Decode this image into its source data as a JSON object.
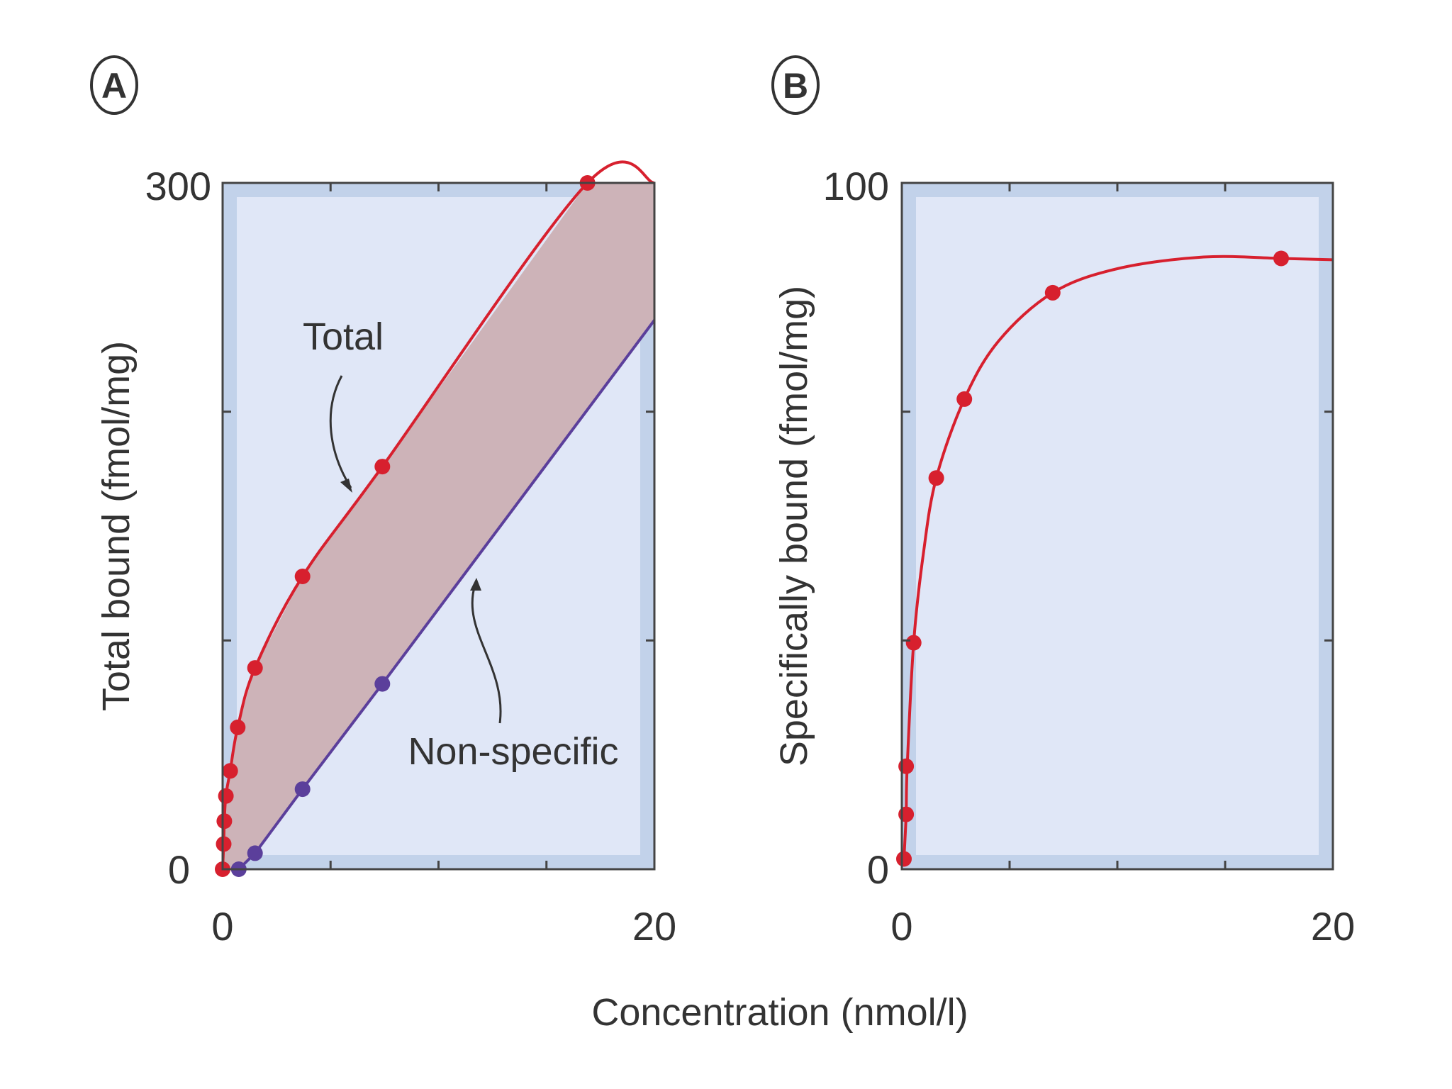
{
  "colors": {
    "plot_frame": "#c2d2ea",
    "plot_inner": "#e0e7f7",
    "total": "#d7202e",
    "nonspecific": "#5b3f9b",
    "band": "#cdb3b8",
    "axis": "#333333"
  },
  "shared": {
    "xlabel": "Concentration (nmol/l)"
  },
  "chart_data": [
    {
      "panel": "A",
      "type": "line",
      "ylabel": "Total bound (fmol/mg)",
      "xlim": [
        0,
        20
      ],
      "ylim": [
        0,
        300
      ],
      "x_ticks": [
        0,
        20
      ],
      "y_ticks": [
        0,
        300
      ],
      "grid": false,
      "shaded_between": [
        "Total",
        "Non-specific"
      ],
      "series": [
        {
          "name": "Total",
          "color": "#d7202e",
          "points": [
            [
              0,
              0
            ],
            [
              0.05,
              11
            ],
            [
              0.08,
              21
            ],
            [
              0.15,
              32
            ],
            [
              0.35,
              43
            ],
            [
              0.7,
              62
            ],
            [
              1.5,
              88
            ],
            [
              3.7,
              128
            ],
            [
              7.4,
              176
            ],
            [
              16.9,
              300
            ]
          ],
          "line": [
            [
              0,
              0
            ],
            [
              0.05,
              11
            ],
            [
              0.08,
              21
            ],
            [
              0.15,
              32
            ],
            [
              0.35,
              43
            ],
            [
              0.7,
              62
            ],
            [
              1.5,
              88
            ],
            [
              3.7,
              128
            ],
            [
              7.4,
              176
            ],
            [
              16.9,
              300
            ],
            [
              20,
              300
            ]
          ]
        },
        {
          "name": "Non-specific",
          "color": "#5b3f9b",
          "points": [
            [
              0.75,
              0
            ],
            [
              1.5,
              7
            ],
            [
              3.7,
              35
            ],
            [
              7.4,
              81
            ]
          ],
          "line": [
            [
              0.75,
              0
            ],
            [
              1.5,
              7
            ],
            [
              3.7,
              35
            ],
            [
              7.4,
              81
            ],
            [
              20,
              240
            ]
          ]
        }
      ],
      "annotations": [
        {
          "text": "Total",
          "x": 5.6,
          "y": 232,
          "arrow_to": [
            6.0,
            165
          ]
        },
        {
          "text": "Non-specific",
          "x": 13.5,
          "y": 50,
          "arrow_to": [
            11.5,
            128
          ]
        }
      ]
    },
    {
      "panel": "B",
      "type": "line",
      "ylabel": "Specifically bound (fmol/mg)",
      "xlim": [
        0,
        20
      ],
      "ylim": [
        0,
        100
      ],
      "x_ticks": [
        0,
        20
      ],
      "y_ticks": [
        0,
        100
      ],
      "grid": false,
      "series": [
        {
          "color": "#d7202e",
          "points": [
            [
              0.1,
              1.5
            ],
            [
              0.2,
              8
            ],
            [
              0.2,
              15
            ],
            [
              0.55,
              33
            ],
            [
              1.6,
              57
            ],
            [
              2.9,
              68.5
            ],
            [
              7.0,
              84
            ],
            [
              17.6,
              89
            ]
          ],
          "line": [
            [
              0.1,
              1.5
            ],
            [
              0.2,
              8
            ],
            [
              0.25,
              15
            ],
            [
              0.55,
              33
            ],
            [
              1.0,
              46
            ],
            [
              1.6,
              57
            ],
            [
              2.9,
              68.5
            ],
            [
              4.5,
              77
            ],
            [
              7.0,
              84
            ],
            [
              10,
              87.5
            ],
            [
              14,
              89.2
            ],
            [
              17.6,
              89
            ],
            [
              20,
              88.8
            ]
          ]
        }
      ]
    }
  ]
}
